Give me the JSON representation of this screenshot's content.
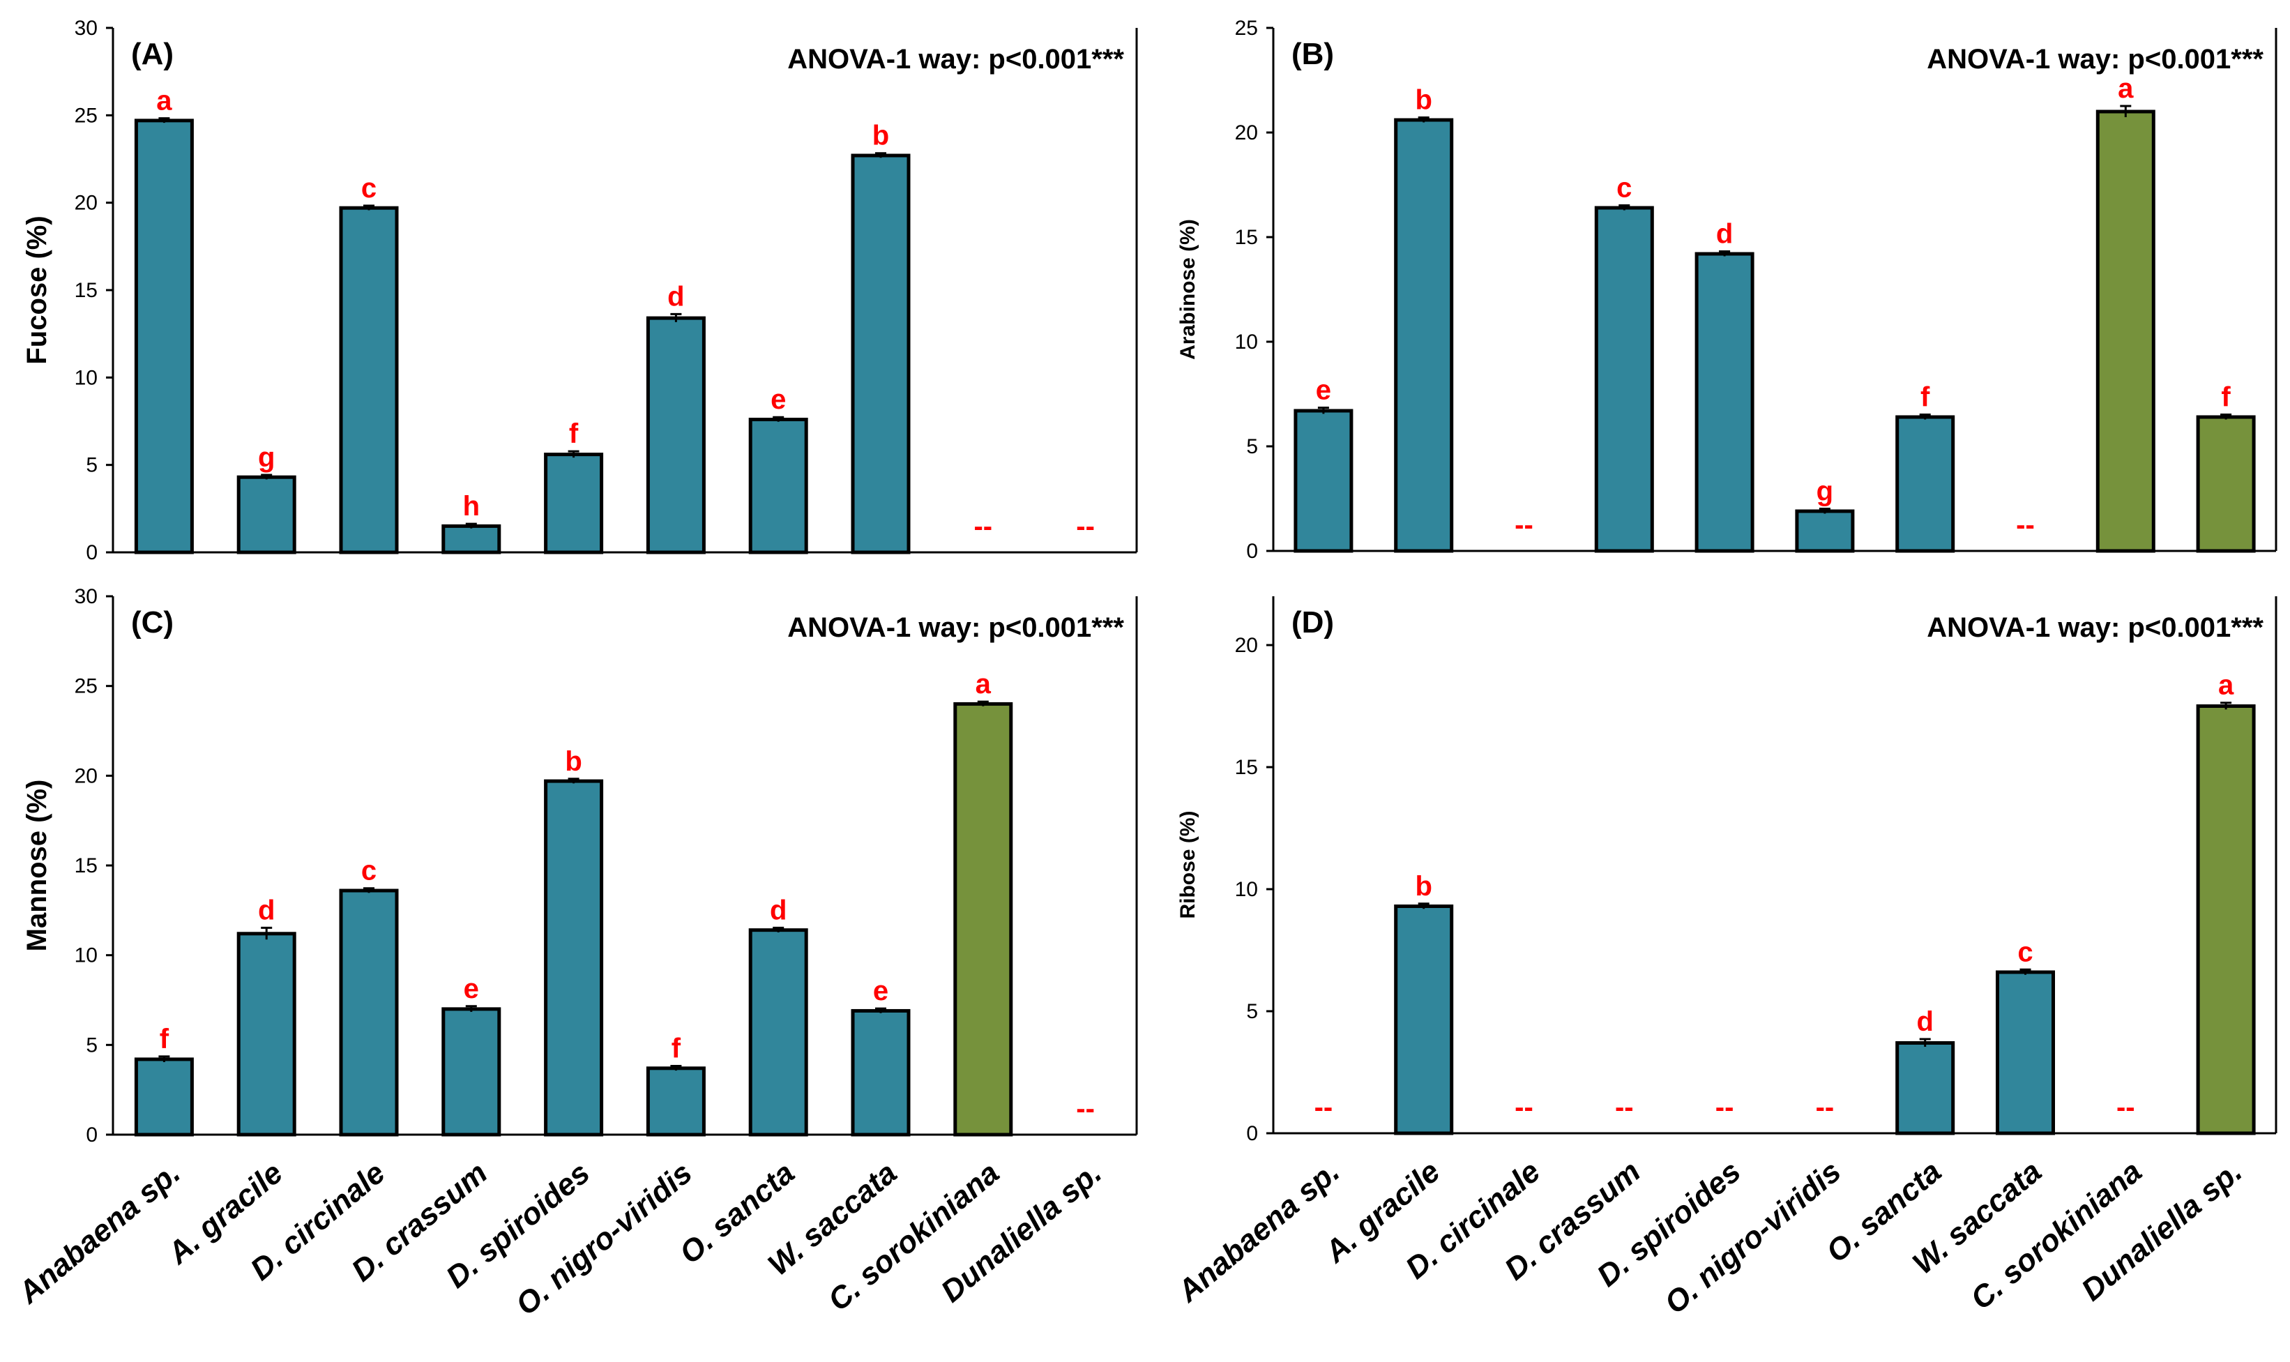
{
  "colors": {
    "teal": "#31869b",
    "olive": "#76923c",
    "significance": "#ff0000",
    "axis": "#000000"
  },
  "chart_data": [
    {
      "type": "bar",
      "panel_label": "(A)",
      "title": "ANOVA-1 way: p<0.001***",
      "ylabel": "Fucose (%)",
      "ylim": [
        0,
        30
      ],
      "yticks": [
        0,
        5,
        10,
        15,
        20,
        25,
        30
      ],
      "categories": [
        "Anabaena sp.",
        "A. gracile",
        "D. circinale",
        "D. crassum",
        "D. spiroides",
        "O. nigro-viridis",
        "O. sancta",
        "W. saccata",
        "C. sorokiniana",
        "Dunaliella sp."
      ],
      "values": [
        24.7,
        4.3,
        19.7,
        1.5,
        5.6,
        13.4,
        7.6,
        22.7,
        null,
        null
      ],
      "errors": [
        0.05,
        0.05,
        0.05,
        0.05,
        0.1,
        0.15,
        0.05,
        0.05,
        null,
        null
      ],
      "bar_colors": [
        "teal",
        "teal",
        "teal",
        "teal",
        "teal",
        "teal",
        "teal",
        "teal",
        "teal",
        "teal"
      ],
      "significance": [
        "a",
        "g",
        "c",
        "h",
        "f",
        "d",
        "e",
        "b",
        "--",
        "--"
      ]
    },
    {
      "type": "bar",
      "panel_label": "(B)",
      "title": "ANOVA-1 way: p<0.001***",
      "ylabel": "Arabinose (%)",
      "ylim": [
        0,
        25
      ],
      "yticks": [
        0,
        5,
        10,
        15,
        20,
        25
      ],
      "categories": [
        "Anabaena sp.",
        "A. gracile",
        "D. circinale",
        "D. crassum",
        "D. spiroides",
        "O. nigro-viridis",
        "O. sancta",
        "W. saccata",
        "C. sorokiniana",
        "Dunaliella sp."
      ],
      "values": [
        6.7,
        20.6,
        null,
        16.4,
        14.2,
        1.9,
        6.4,
        null,
        21.0,
        6.4
      ],
      "errors": [
        0.08,
        0.05,
        null,
        0.05,
        0.05,
        0.05,
        0.05,
        null,
        0.2,
        0.05
      ],
      "bar_colors": [
        "teal",
        "teal",
        "teal",
        "teal",
        "teal",
        "teal",
        "teal",
        "teal",
        "olive",
        "olive"
      ],
      "significance": [
        "e",
        "b",
        "--",
        "c",
        "d",
        "g",
        "f",
        "--",
        "a",
        "f"
      ]
    },
    {
      "type": "bar",
      "panel_label": "(C)",
      "title": "ANOVA-1 way: p<0.001***",
      "ylabel": "Mannose (%)",
      "ylim": [
        0,
        30
      ],
      "yticks": [
        0,
        5,
        10,
        15,
        20,
        25,
        30
      ],
      "categories": [
        "Anabaena sp.",
        "A. gracile",
        "D. circinale",
        "D. crassum",
        "D. spiroides",
        "O. nigro-viridis",
        "O. sancta",
        "W. saccata",
        "C. sorokiniana",
        "Dunaliella sp."
      ],
      "values": [
        4.2,
        11.2,
        13.6,
        7.0,
        19.7,
        3.7,
        11.4,
        6.9,
        24.0,
        null
      ],
      "errors": [
        0.08,
        0.25,
        0.05,
        0.08,
        0.05,
        0.05,
        0.05,
        0.05,
        0.05,
        null
      ],
      "bar_colors": [
        "teal",
        "teal",
        "teal",
        "teal",
        "teal",
        "teal",
        "teal",
        "teal",
        "olive",
        "olive"
      ],
      "significance": [
        "f",
        "d",
        "c",
        "e",
        "b",
        "f",
        "d",
        "e",
        "a",
        "--"
      ]
    },
    {
      "type": "bar",
      "panel_label": "(D)",
      "title": "ANOVA-1 way: p<0.001***",
      "ylabel": "Ribose (%)",
      "ylim": [
        0,
        22
      ],
      "yticks": [
        0,
        5,
        10,
        15,
        20
      ],
      "categories": [
        "Anabaena sp.",
        "A. gracile",
        "D. circinale",
        "D. crassum",
        "D. spiroides",
        "O. nigro-viridis",
        "O. sancta",
        "W. saccata",
        "C. sorokiniana",
        "Dunaliella sp."
      ],
      "values": [
        null,
        9.3,
        null,
        null,
        null,
        null,
        3.7,
        6.6,
        null,
        17.5
      ],
      "errors": [
        null,
        0.05,
        null,
        null,
        null,
        null,
        0.1,
        0.05,
        null,
        0.08
      ],
      "bar_colors": [
        "teal",
        "teal",
        "teal",
        "teal",
        "teal",
        "teal",
        "teal",
        "teal",
        "olive",
        "olive"
      ],
      "significance": [
        "--",
        "b",
        "--",
        "--",
        "--",
        "--",
        "d",
        "c",
        "--",
        "a"
      ]
    }
  ]
}
